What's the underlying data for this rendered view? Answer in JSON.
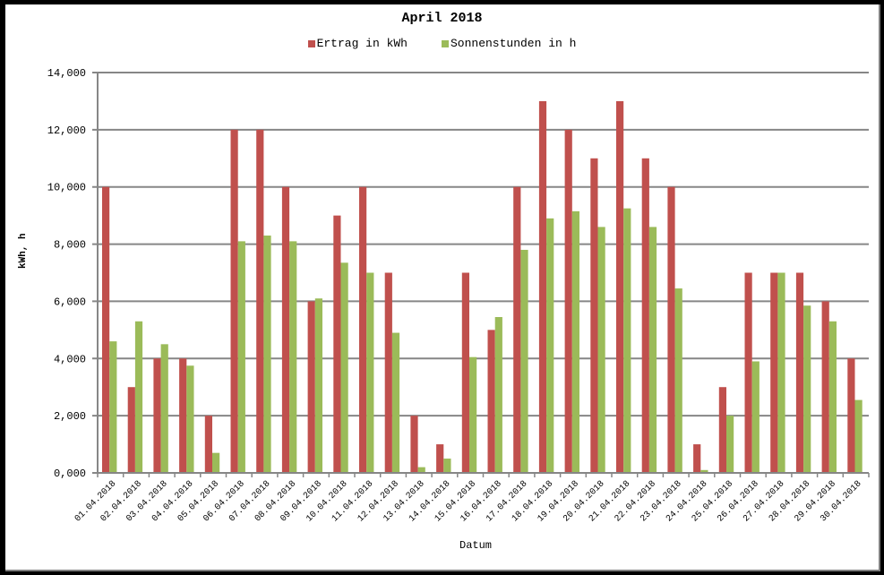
{
  "chart_data": {
    "type": "bar",
    "title": "April 2018",
    "xlabel": "Datum",
    "ylabel": "kWh, h",
    "ylim": [
      0,
      14
    ],
    "yticks": [
      "0,000",
      "2,000",
      "4,000",
      "6,000",
      "8,000",
      "10,000",
      "12,000",
      "14,000"
    ],
    "grid": true,
    "legend_position": "top",
    "categories": [
      "01.04.2018",
      "02.04.2018",
      "03.04.2018",
      "04.04.2018",
      "05.04.2018",
      "06.04.2018",
      "07.04.2018",
      "08.04.2018",
      "09.04.2018",
      "10.04.2018",
      "11.04.2018",
      "12.04.2018",
      "13.04.2018",
      "14.04.2018",
      "15.04.2018",
      "16.04.2018",
      "17.04.2018",
      "18.04.2018",
      "19.04.2018",
      "20.04.2018",
      "21.04.2018",
      "22.04.2018",
      "23.04.2018",
      "24.04.2018",
      "25.04.2018",
      "26.04.2018",
      "27.04.2018",
      "28.04.2018",
      "29.04.2018",
      "30.04.2018"
    ],
    "series": [
      {
        "name": "Ertrag in kWh",
        "color": "#c0504d",
        "values": [
          10,
          3,
          4,
          4,
          2,
          12,
          12,
          10,
          6,
          9,
          10,
          7,
          2,
          1,
          7,
          5,
          10,
          13,
          12,
          11,
          13,
          11,
          10,
          1,
          3,
          7,
          7,
          7,
          6,
          4
        ]
      },
      {
        "name": "Sonnenstunden in h",
        "color": "#9bbb59",
        "values": [
          4.6,
          5.3,
          4.5,
          3.75,
          0.7,
          8.1,
          8.3,
          8.1,
          6.1,
          7.35,
          7.0,
          4.9,
          0.2,
          0.5,
          4.05,
          5.45,
          7.8,
          8.9,
          9.15,
          8.6,
          9.25,
          8.6,
          6.45,
          0.1,
          2.0,
          3.9,
          7.0,
          5.85,
          5.3,
          2.55
        ]
      }
    ]
  },
  "colors": {
    "grid": "#868686",
    "axis": "#868686"
  }
}
